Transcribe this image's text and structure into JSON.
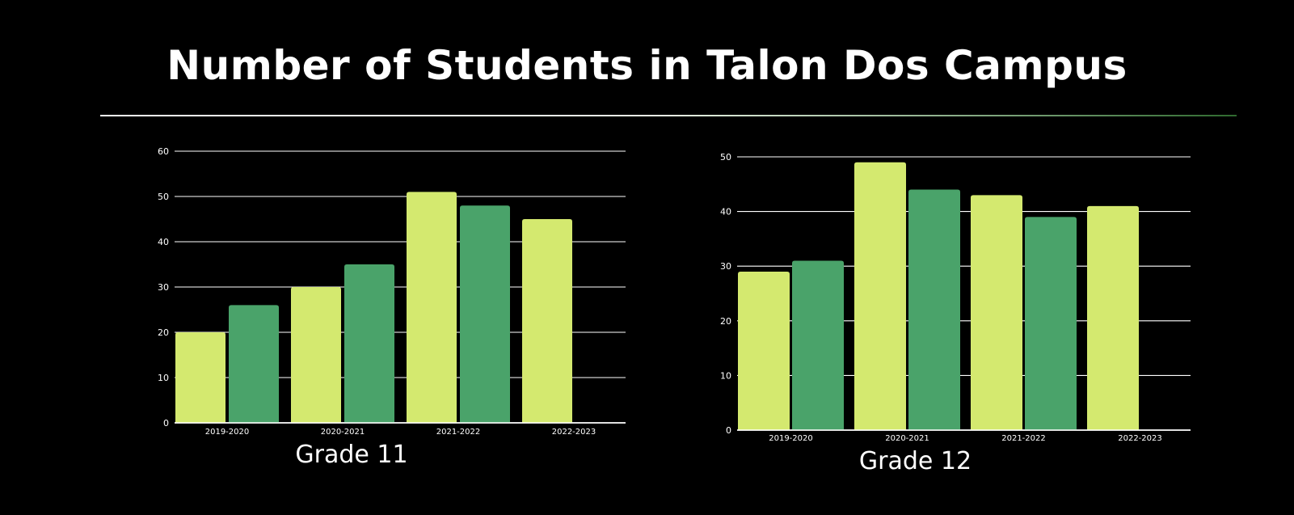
{
  "title": "Number of Students in Talon Dos Campus",
  "colors": {
    "background": "#000000",
    "series_light": "#d4e96f",
    "series_dark": "#4aa36a",
    "grid": "#ffffff",
    "text": "#ffffff"
  },
  "chart_data": [
    {
      "type": "bar",
      "title": "Grade 11",
      "categories": [
        "2019-2020",
        "2020-2021",
        "2021-2022",
        "2022-2023"
      ],
      "series": [
        {
          "values": [
            20,
            30,
            51,
            45
          ],
          "color": "#d4e96f"
        },
        {
          "values": [
            26,
            35,
            48,
            null
          ],
          "color": "#4aa36a"
        }
      ],
      "yticks": [
        0,
        10,
        20,
        30,
        40,
        50,
        60
      ],
      "ylim": [
        0,
        60
      ],
      "xlabel": "",
      "ylabel": "",
      "grid": true,
      "legend": "none"
    },
    {
      "type": "bar",
      "title": "Grade 12",
      "categories": [
        "2019-2020",
        "2020-2021",
        "2021-2022",
        "2022-2023"
      ],
      "series": [
        {
          "values": [
            29,
            49,
            43,
            41
          ],
          "color": "#d4e96f"
        },
        {
          "values": [
            31,
            44,
            39,
            null
          ],
          "color": "#4aa36a"
        }
      ],
      "yticks": [
        0,
        10,
        20,
        30,
        40,
        50
      ],
      "ylim": [
        0,
        50
      ],
      "xlabel": "",
      "ylabel": "",
      "grid": true,
      "legend": "none"
    }
  ]
}
